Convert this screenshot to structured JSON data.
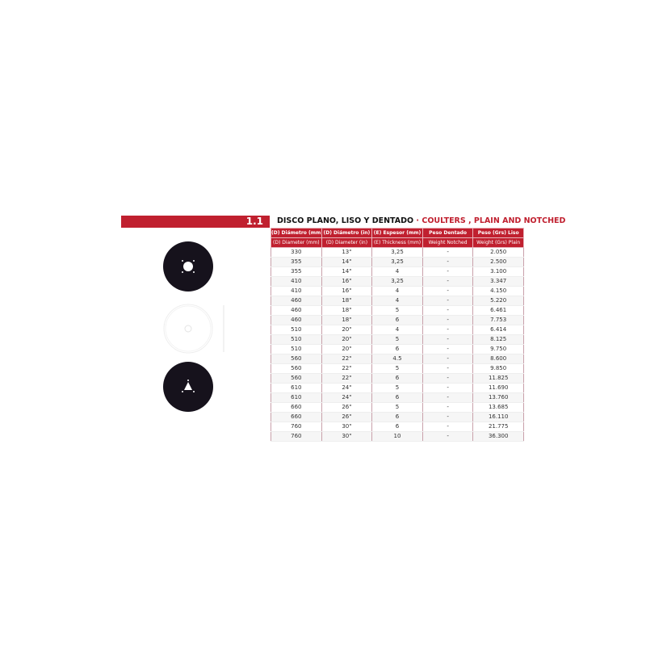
{
  "section": {
    "number": "1.1",
    "title_es": "DISCO PLANO, LISO Y DENTADO",
    "separator": " · ",
    "title_en": "COULTERS , PLAIN AND NOTCHED"
  },
  "colors": {
    "accent": "#c0202f"
  },
  "images": [
    "plain-disc-square-hole",
    "notched-disc-outline",
    "plain-disc-triangle-hole"
  ],
  "table": {
    "headers_es": [
      "(D) Diámetro (mm)",
      "(D) Diámetro (in)",
      "(E) Espesor (mm)",
      "Peso Dentado",
      "Peso (Grs) Liso"
    ],
    "headers_en": [
      "(D) Diameter (mm)",
      "(D) Diameter (in)",
      "(E) Thickness (mm)",
      "Weight Notched",
      "Weight (Grs) Plain"
    ],
    "rows": [
      [
        "330",
        "13\"",
        "3,25",
        "-",
        "2.050"
      ],
      [
        "355",
        "14\"",
        "3,25",
        "-",
        "2.500"
      ],
      [
        "355",
        "14\"",
        "4",
        "-",
        "3.100"
      ],
      [
        "410",
        "16\"",
        "3,25",
        "-",
        "3.347"
      ],
      [
        "410",
        "16\"",
        "4",
        "-",
        "4.150"
      ],
      [
        "460",
        "18\"",
        "4",
        "-",
        "5.220"
      ],
      [
        "460",
        "18\"",
        "5",
        "-",
        "6.461"
      ],
      [
        "460",
        "18\"",
        "6",
        "-",
        "7.753"
      ],
      [
        "510",
        "20\"",
        "4",
        "-",
        "6.414"
      ],
      [
        "510",
        "20\"",
        "5",
        "-",
        "8.125"
      ],
      [
        "510",
        "20\"",
        "6",
        "-",
        "9.750"
      ],
      [
        "560",
        "22\"",
        "4.5",
        "-",
        "8.600"
      ],
      [
        "560",
        "22\"",
        "5",
        "-",
        "9.850"
      ],
      [
        "560",
        "22\"",
        "6",
        "-",
        "11.825"
      ],
      [
        "610",
        "24\"",
        "5",
        "-",
        "11.690"
      ],
      [
        "610",
        "24\"",
        "6",
        "-",
        "13.760"
      ],
      [
        "660",
        "26\"",
        "5",
        "-",
        "13.685"
      ],
      [
        "660",
        "26\"",
        "6",
        "-",
        "16.110"
      ],
      [
        "760",
        "30\"",
        "6",
        "-",
        "21.775"
      ],
      [
        "760",
        "30\"",
        "10",
        "-",
        "36.300"
      ]
    ]
  }
}
